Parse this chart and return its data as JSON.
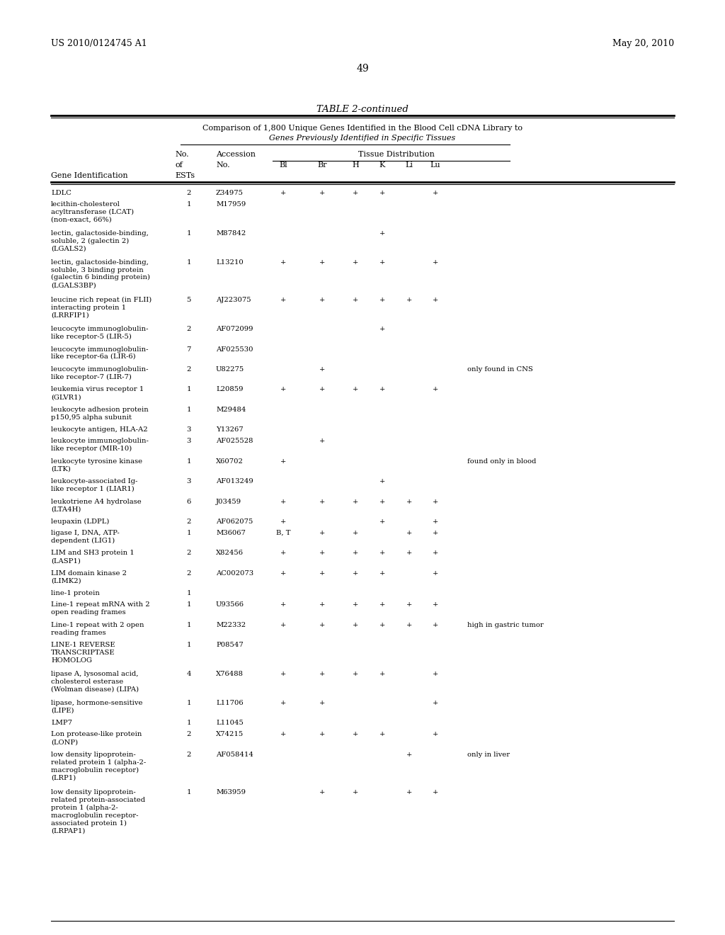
{
  "page_header_left": "US 2010/0124745 A1",
  "page_header_right": "May 20, 2010",
  "page_number": "49",
  "table_title": "TABLE 2-continued",
  "table_subtitle1": "Comparison of 1,800 Unique Genes Identified in the Blood Cell cDNA Library to",
  "table_subtitle2": "Genes Previously Identified in Specific Tissues",
  "rows": [
    [
      "LDLC",
      "2",
      "Z34975",
      "+",
      "+",
      "+",
      "+",
      "",
      "+",
      ""
    ],
    [
      "lecithin-cholesterol\nacyltransferase (LCAT)\n(non-exact, 66%)",
      "1",
      "M17959",
      "",
      "",
      "",
      "",
      "",
      "",
      ""
    ],
    [
      "lectin, galactoside-binding,\nsoluble, 2 (galectin 2)\n(LGALS2)",
      "1",
      "M87842",
      "",
      "",
      "",
      "+",
      "",
      "",
      ""
    ],
    [
      "lectin, galactoside-binding,\nsoluble, 3 binding protein\n(galectin 6 binding protein)\n(LGALS3BP)",
      "1",
      "L13210",
      "+",
      "+",
      "+",
      "+",
      "",
      "+",
      ""
    ],
    [
      "leucine rich repeat (in FLII)\ninteracting protein 1\n(LRRFIP1)",
      "5",
      "AJ223075",
      "+",
      "+",
      "+",
      "+",
      "+",
      "+",
      ""
    ],
    [
      "leucocyte immunoglobulin-\nlike receptor-5 (LIR-5)",
      "2",
      "AF072099",
      "",
      "",
      "",
      "+",
      "",
      "",
      ""
    ],
    [
      "leucocyte immunoglobulin-\nlike receptor-6a (LIR-6)",
      "7",
      "AF025530",
      "",
      "",
      "",
      "",
      "",
      "",
      ""
    ],
    [
      "leucocyte immunoglobulin-\nlike receptor-7 (LIR-7)",
      "2",
      "U82275",
      "",
      "+",
      "",
      "",
      "",
      "",
      "only found in CNS"
    ],
    [
      "leukemia virus receptor 1\n(GLVR1)",
      "1",
      "L20859",
      "+",
      "+",
      "+",
      "+",
      "",
      "+",
      ""
    ],
    [
      "leukocyte adhesion protein\np150,95 alpha subunit",
      "1",
      "M29484",
      "",
      "",
      "",
      "",
      "",
      "",
      ""
    ],
    [
      "leukocyte antigen, HLA-A2",
      "3",
      "Y13267",
      "",
      "",
      "",
      "",
      "",
      "",
      ""
    ],
    [
      "leukocyte immunoglobulin-\nlike receptor (MIR-10)",
      "3",
      "AF025528",
      "",
      "+",
      "",
      "",
      "",
      "",
      ""
    ],
    [
      "leukocyte tyrosine kinase\n(LTK)",
      "1",
      "X60702",
      "+",
      "",
      "",
      "",
      "",
      "",
      "found only in blood"
    ],
    [
      "leukocyte-associated Ig-\nlike receptor 1 (LIAR1)",
      "3",
      "AF013249",
      "",
      "",
      "",
      "+",
      "",
      "",
      ""
    ],
    [
      "leukotriene A4 hydrolase\n(LTA4H)",
      "6",
      "J03459",
      "+",
      "+",
      "+",
      "+",
      "+",
      "+",
      ""
    ],
    [
      "leupaxin (LDPL)",
      "2",
      "AF062075",
      "+",
      "",
      "",
      "+",
      "",
      "+",
      ""
    ],
    [
      "ligase I, DNA, ATP-\ndependent (LIG1)",
      "1",
      "M36067",
      "B, T",
      "+",
      "+",
      "",
      "+",
      "+",
      ""
    ],
    [
      "LIM and SH3 protein 1\n(LASP1)",
      "2",
      "X82456",
      "+",
      "+",
      "+",
      "+",
      "+",
      "+",
      ""
    ],
    [
      "LIM domain kinase 2\n(LIMK2)",
      "2",
      "AC002073",
      "+",
      "+",
      "+",
      "+",
      "",
      "+",
      ""
    ],
    [
      "line-1 protein",
      "1",
      "",
      "",
      "",
      "",
      "",
      "",
      "",
      ""
    ],
    [
      "Line-1 repeat mRNA with 2\nopen reading frames",
      "1",
      "U93566",
      "+",
      "+",
      "+",
      "+",
      "+",
      "+",
      ""
    ],
    [
      "Line-1 repeat with 2 open\nreading frames",
      "1",
      "M22332",
      "+",
      "+",
      "+",
      "+",
      "+",
      "+",
      "high in gastric tumor"
    ],
    [
      "LINE-1 REVERSE\nTRANSCRIPTASE\nHOMOLOG",
      "1",
      "P08547",
      "",
      "",
      "",
      "",
      "",
      "",
      ""
    ],
    [
      "lipase A, lysosomal acid,\ncholesterol esterase\n(Wolman disease) (LIPA)",
      "4",
      "X76488",
      "+",
      "+",
      "+",
      "+",
      "",
      "+",
      ""
    ],
    [
      "lipase, hormone-sensitive\n(LIPE)",
      "1",
      "L11706",
      "+",
      "+",
      "",
      "",
      "",
      "+",
      ""
    ],
    [
      "LMP7",
      "1",
      "L11045",
      "",
      "",
      "",
      "",
      "",
      "",
      ""
    ],
    [
      "Lon protease-like protein\n(LONP)",
      "2",
      "X74215",
      "+",
      "+",
      "+",
      "+",
      "",
      "+",
      ""
    ],
    [
      "low density lipoprotein-\nrelated protein 1 (alpha-2-\nmacroglobulin receptor)\n(LRP1)",
      "2",
      "AF058414",
      "",
      "",
      "",
      "",
      "+",
      "",
      "only in liver"
    ],
    [
      "low density lipoprotein-\nrelated protein-associated\nprotein 1 (alpha-2-\nmacroglobulin receptor-\nassociated protein 1)\n(LRPAP1)",
      "1",
      "M63959",
      "",
      "+",
      "+",
      "",
      "+",
      "+",
      ""
    ]
  ]
}
